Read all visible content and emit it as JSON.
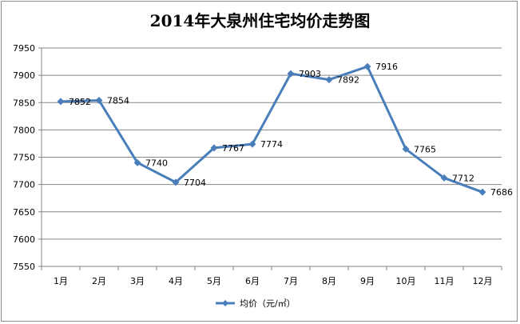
{
  "chart_data": {
    "type": "line",
    "title": "2014年大泉州住宅均价走势图",
    "xlabel": "",
    "ylabel": "",
    "categories": [
      "1月",
      "2月",
      "3月",
      "4月",
      "5月",
      "6月",
      "7月",
      "8月",
      "9月",
      "10月",
      "11月",
      "12月"
    ],
    "series": [
      {
        "name": "均价（元/㎡）",
        "values": [
          7852,
          7854,
          7740,
          7704,
          7767,
          7774,
          7903,
          7892,
          7916,
          7765,
          7712,
          7686
        ],
        "color": "#4a7ebb"
      }
    ],
    "ylim": [
      7550,
      7950
    ],
    "yticks": [
      7550,
      7600,
      7650,
      7700,
      7750,
      7800,
      7850,
      7900,
      7950
    ],
    "grid": true,
    "legend": "bottom",
    "marker": "diamond"
  }
}
